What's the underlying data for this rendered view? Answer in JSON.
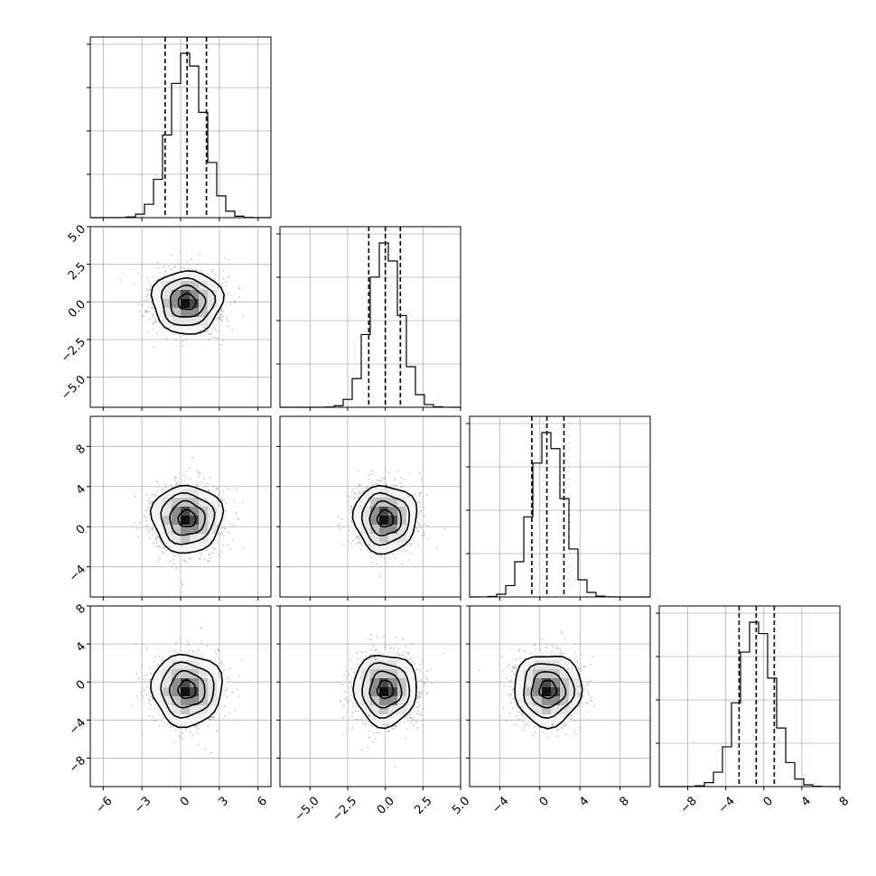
{
  "colors": {
    "scatter": "#9a9a9a",
    "grid": "#b0b0b0",
    "ink": "#000000"
  },
  "chart_data": {
    "type": "corner",
    "grid": true,
    "params": [
      {
        "range": [
          -7,
          7
        ],
        "ticks": [
          -6,
          -3,
          0,
          3,
          6
        ],
        "tick_labels": [
          "−6",
          "−3",
          "0",
          "3",
          "6"
        ],
        "quantiles": [
          -1.2,
          0.5,
          2.0
        ],
        "mean": 0.5,
        "sd": 1.3
      },
      {
        "range": [
          -7,
          5
        ],
        "ticks": [
          -5,
          -2.5,
          0,
          2.5,
          5
        ],
        "tick_labels": [
          "−5.0",
          "−2.5",
          "0.0",
          "2.5",
          "5.0"
        ],
        "quantiles": [
          -1.1,
          0.0,
          1.0
        ],
        "mean": 0.0,
        "sd": 1.0
      },
      {
        "range": [
          -7,
          11
        ],
        "ticks": [
          -4,
          0,
          4,
          8
        ],
        "tick_labels": [
          "−4",
          "0",
          "4",
          "8"
        ],
        "quantiles": [
          -0.8,
          0.7,
          2.4
        ],
        "mean": 0.8,
        "sd": 1.6
      },
      {
        "range": [
          -11,
          8
        ],
        "ticks": [
          -8,
          -4,
          0,
          4,
          8
        ],
        "tick_labels": [
          "−8",
          "−4",
          "0",
          "4",
          "8"
        ],
        "quantiles": [
          -2.6,
          -0.8,
          1.1
        ],
        "mean": -0.8,
        "sd": 1.8
      }
    ],
    "panels": [
      {
        "row": 0,
        "col": 0,
        "kind": "hist",
        "param": 0
      },
      {
        "row": 1,
        "col": 0,
        "kind": "density2d",
        "x_param": 0,
        "y_param": 1
      },
      {
        "row": 1,
        "col": 1,
        "kind": "hist",
        "param": 1
      },
      {
        "row": 2,
        "col": 0,
        "kind": "density2d",
        "x_param": 0,
        "y_param": 2
      },
      {
        "row": 2,
        "col": 1,
        "kind": "density2d",
        "x_param": 1,
        "y_param": 2
      },
      {
        "row": 2,
        "col": 2,
        "kind": "hist",
        "param": 2
      },
      {
        "row": 3,
        "col": 0,
        "kind": "density2d",
        "x_param": 0,
        "y_param": 3
      },
      {
        "row": 3,
        "col": 1,
        "kind": "density2d",
        "x_param": 1,
        "y_param": 3
      },
      {
        "row": 3,
        "col": 2,
        "kind": "density2d",
        "x_param": 2,
        "y_param": 3
      },
      {
        "row": 3,
        "col": 3,
        "kind": "hist",
        "param": 3
      }
    ]
  }
}
